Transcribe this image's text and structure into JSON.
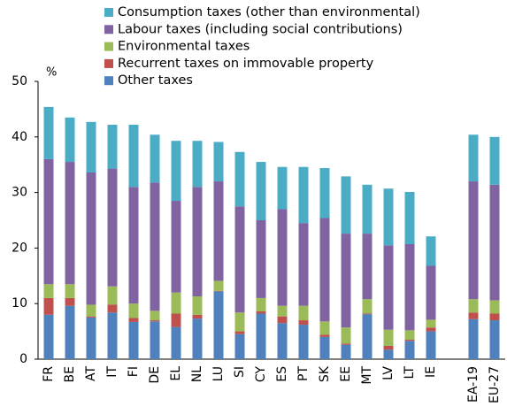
{
  "chart_data": {
    "type": "stacked_bar",
    "y_label": "%",
    "categories": [
      "FR",
      "BE",
      "AT",
      "IT",
      "FI",
      "DE",
      "EL",
      "NL",
      "LU",
      "SI",
      "CY",
      "ES",
      "PT",
      "SK",
      "EE",
      "MT",
      "LV",
      "LT",
      "IE",
      null,
      "EA-19",
      "EU-27"
    ],
    "series": [
      {
        "name": "Consumption taxes (other than environmental)",
        "color": "#4bacc6",
        "values": [
          9.4,
          8.0,
          9.1,
          7.9,
          11.2,
          8.6,
          10.8,
          8.3,
          7.1,
          9.8,
          10.5,
          7.6,
          10.1,
          9.0,
          10.3,
          8.8,
          10.2,
          9.4,
          5.3,
          null,
          8.4,
          8.6
        ]
      },
      {
        "name": "Labour taxes (including social contributions)",
        "color": "#8064a2",
        "values": [
          22.5,
          22.0,
          23.8,
          21.2,
          21.0,
          23.1,
          16.5,
          19.7,
          17.9,
          19.1,
          14.0,
          17.4,
          14.9,
          18.6,
          16.9,
          11.8,
          15.2,
          15.5,
          9.7,
          null,
          21.2,
          20.8
        ]
      },
      {
        "name": "Environmental taxes",
        "color": "#9bbb59",
        "values": [
          2.5,
          2.5,
          2.1,
          3.3,
          2.6,
          1.7,
          3.8,
          3.3,
          1.8,
          3.4,
          2.4,
          1.9,
          2.6,
          2.4,
          2.9,
          2.6,
          2.9,
          1.7,
          1.4,
          null,
          2.4,
          2.4
        ]
      },
      {
        "name": "Recurrent taxes on immovable property",
        "color": "#c0504d",
        "values": [
          3.0,
          1.4,
          0.2,
          1.4,
          0.7,
          0.2,
          2.4,
          0.7,
          0.1,
          0.5,
          0.4,
          1.2,
          0.8,
          0.4,
          0.2,
          0.1,
          0.7,
          0.2,
          0.7,
          null,
          1.2,
          1.2
        ]
      },
      {
        "name": "Other taxes",
        "color": "#4f81bd",
        "values": [
          8.0,
          9.6,
          7.5,
          8.4,
          6.7,
          6.8,
          5.8,
          7.3,
          12.2,
          4.5,
          8.2,
          6.5,
          6.2,
          4.0,
          2.6,
          8.1,
          1.7,
          3.3,
          5.0,
          null,
          7.2,
          7.0
        ]
      }
    ],
    "ylim": [
      0,
      50
    ],
    "yticks": [
      0,
      10,
      20,
      30,
      40,
      50
    ],
    "grid": false
  }
}
